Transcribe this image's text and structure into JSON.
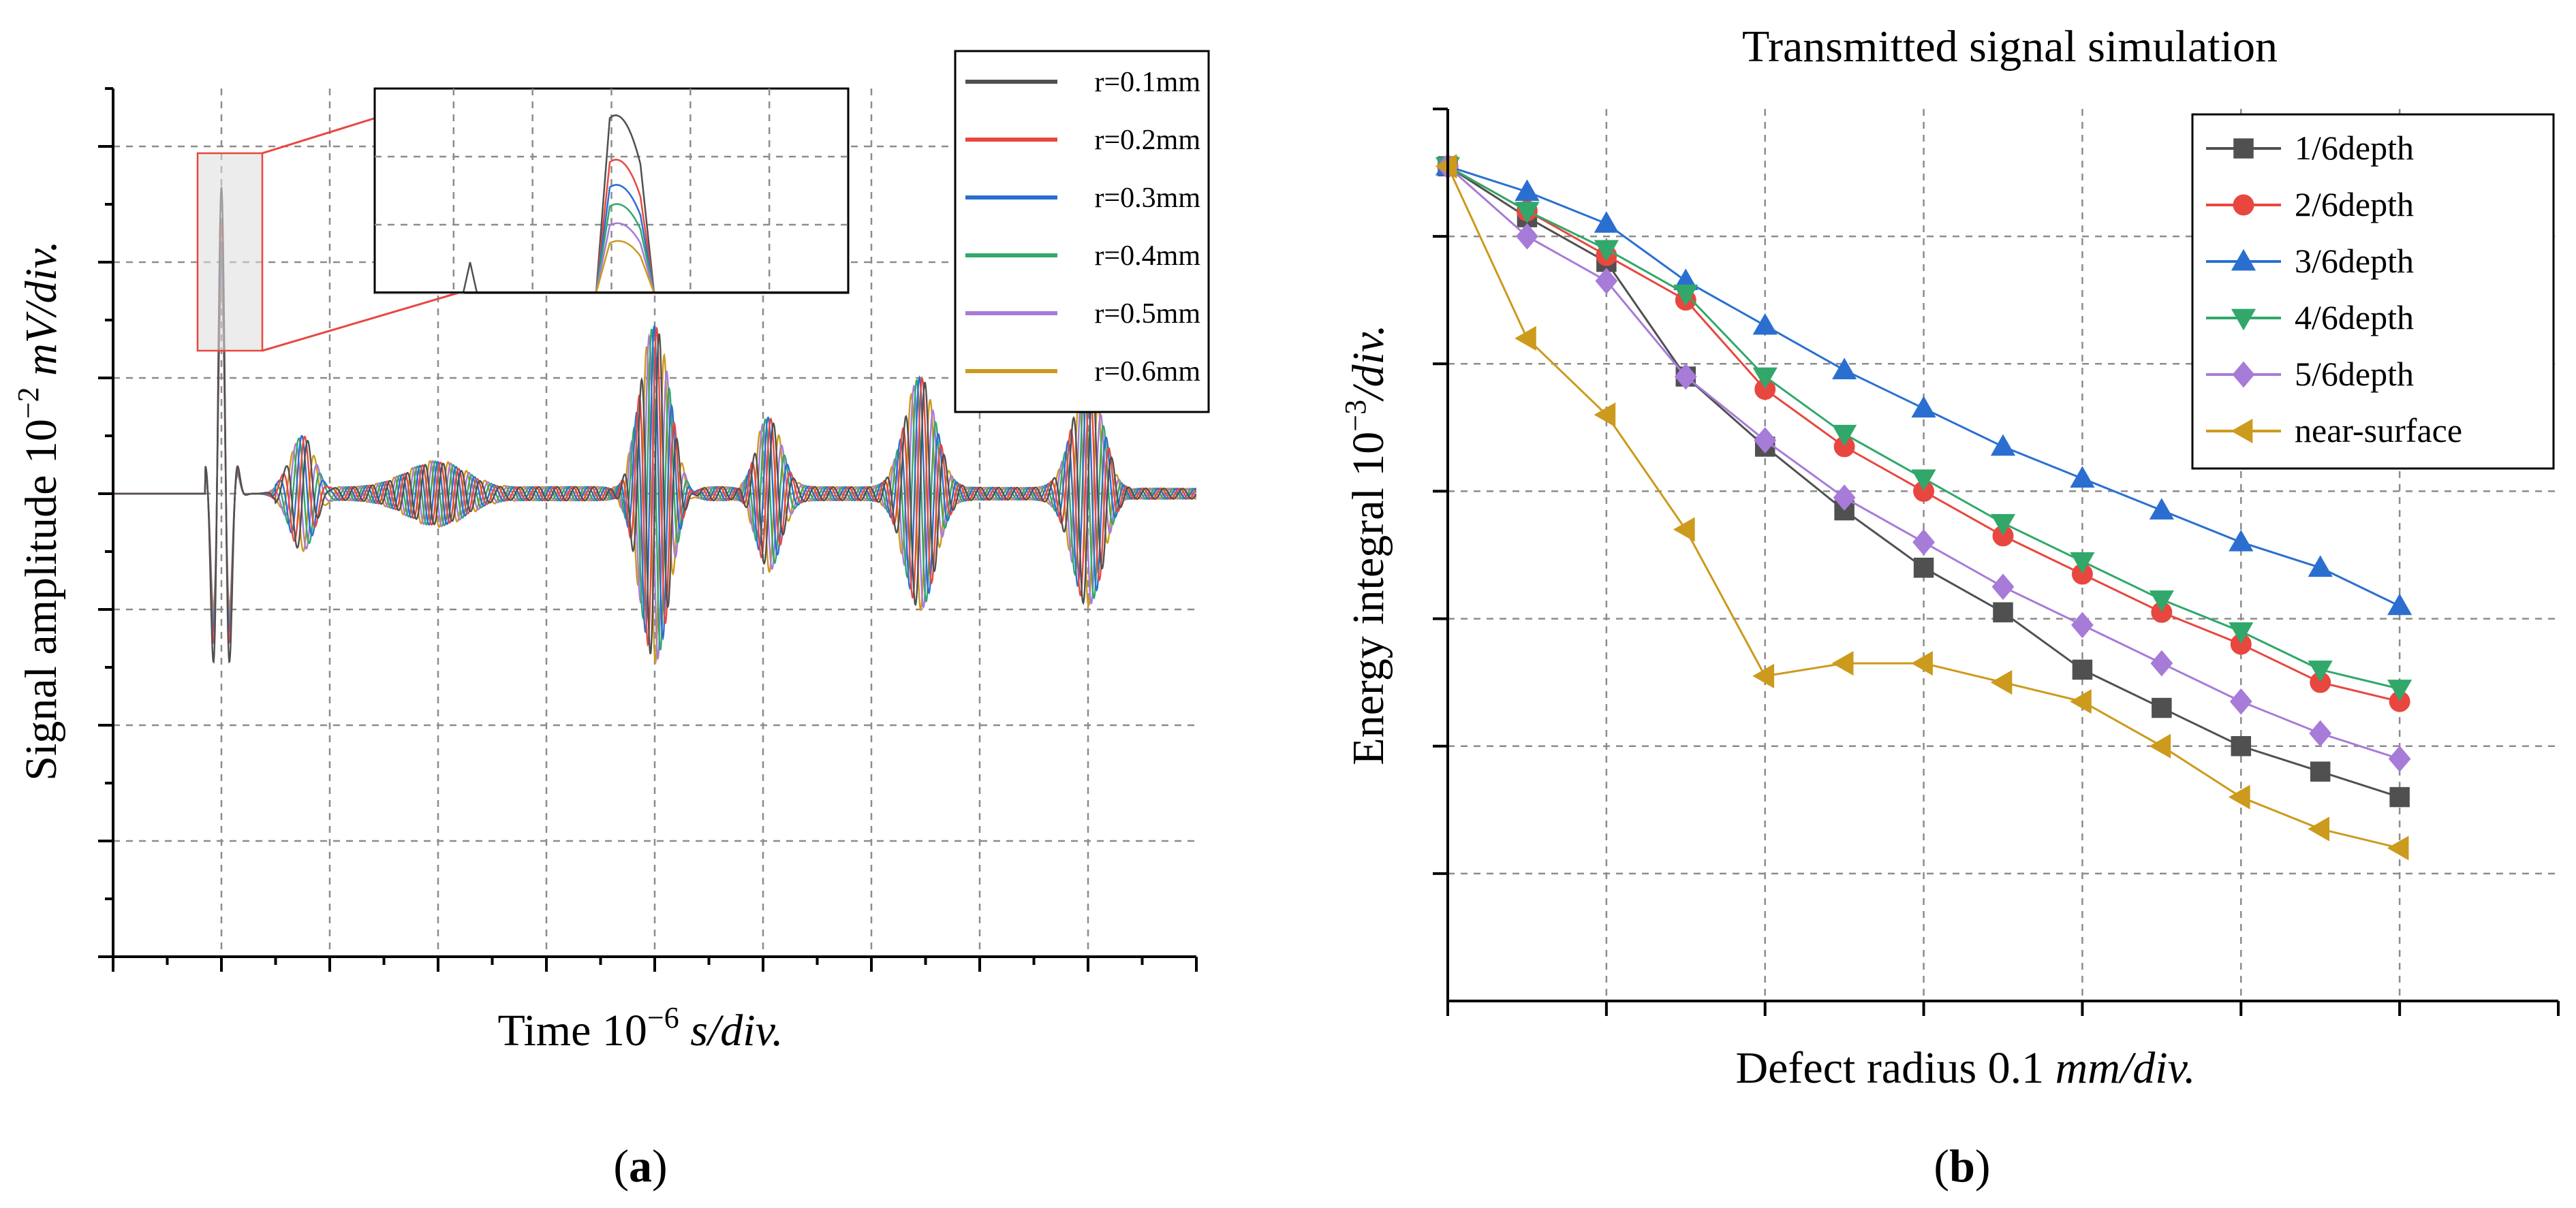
{
  "chart_data": [
    {
      "type": "line",
      "panel_label": "(a)",
      "panel_letter": "a",
      "title": "",
      "xlabel": "Time 10",
      "xlabel_exp": "−6",
      "xlabel_units": "s/div.",
      "ylabel": "Signal amplitude 10",
      "ylabel_exp": "−2",
      "ylabel_units": "mV/div.",
      "xlim": [
        -1,
        9
      ],
      "ylim": [
        -4,
        3.5
      ],
      "grid": true,
      "legend_position": "top-right",
      "series": [
        {
          "name": "r=0.1mm",
          "color": "#505050",
          "peak": 2.65
        },
        {
          "name": "r=0.2mm",
          "color": "#e8473f",
          "peak": 2.35
        },
        {
          "name": "r=0.3mm",
          "color": "#2a6fd0",
          "peak": 2.18
        },
        {
          "name": "r=0.4mm",
          "color": "#31a86a",
          "peak": 2.05
        },
        {
          "name": "r=0.5mm",
          "color": "#a77bd8",
          "peak": 1.92
        },
        {
          "name": "r=0.6mm",
          "color": "#cc9a1c",
          "peak": 1.8
        }
      ],
      "wave_packets": [
        {
          "t": 0.0,
          "amp": 3.2,
          "width": 0.15,
          "freq": 6.0
        },
        {
          "t": 0.75,
          "amp": 0.55,
          "width": 0.25,
          "freq": 5.0
        },
        {
          "t": 2.0,
          "amp": 0.25,
          "width": 0.6,
          "freq": 6.0
        },
        {
          "t": 4.0,
          "amp": 1.5,
          "width": 0.3,
          "freq": 6.0
        },
        {
          "t": 5.05,
          "amp": 0.65,
          "width": 0.25,
          "freq": 5.5
        },
        {
          "t": 6.45,
          "amp": 0.95,
          "width": 0.3,
          "freq": 5.5
        },
        {
          "t": 8.0,
          "amp": 0.95,
          "width": 0.3,
          "freq": 5.5
        }
      ],
      "inset": {
        "description": "zoom on first peak",
        "xlim": [
          -0.15,
          0.15
        ]
      }
    },
    {
      "type": "line",
      "panel_label": "(b)",
      "panel_letter": "b",
      "title": "Transmitted signal simulation",
      "xlabel": "Defect radius 0.1 ",
      "xlabel_units": "mm/div.",
      "ylabel": "Energy integral 10",
      "ylabel_exp": "−3",
      "ylabel_units": "/div.",
      "xlim": [
        0,
        7
      ],
      "ylim": [
        0,
        7
      ],
      "grid": true,
      "legend_position": "top-right",
      "x": [
        0,
        0.5,
        1,
        1.5,
        2,
        2.5,
        3,
        3.5,
        4,
        4.5,
        5,
        5.5,
        6
      ],
      "series": [
        {
          "name": "1/6depth",
          "color": "#505050",
          "marker": "square",
          "values": [
            6.55,
            6.15,
            5.8,
            4.9,
            4.35,
            3.85,
            3.4,
            3.05,
            2.6,
            2.3,
            2.0,
            1.8,
            1.6
          ]
        },
        {
          "name": "2/6depth",
          "color": "#e8473f",
          "marker": "circle",
          "values": [
            6.55,
            6.2,
            5.85,
            5.5,
            4.8,
            4.35,
            4.0,
            3.65,
            3.35,
            3.05,
            2.8,
            2.5,
            2.35
          ]
        },
        {
          "name": "3/6depth",
          "color": "#2a6fd0",
          "marker": "triangle-up",
          "values": [
            6.55,
            6.35,
            6.1,
            5.65,
            5.3,
            4.95,
            4.65,
            4.35,
            4.1,
            3.85,
            3.6,
            3.4,
            3.1
          ]
        },
        {
          "name": "4/6depth",
          "color": "#31a86a",
          "marker": "triangle-down",
          "values": [
            6.55,
            6.2,
            5.9,
            5.55,
            4.9,
            4.45,
            4.1,
            3.75,
            3.45,
            3.15,
            2.9,
            2.6,
            2.45
          ]
        },
        {
          "name": "5/6depth",
          "color": "#a77bd8",
          "marker": "diamond",
          "values": [
            6.55,
            6.0,
            5.65,
            4.9,
            4.4,
            3.95,
            3.6,
            3.25,
            2.95,
            2.65,
            2.35,
            2.1,
            1.9
          ]
        },
        {
          "name": "near-surface",
          "color": "#cc9a1c",
          "marker": "triangle-left",
          "values": [
            6.55,
            5.2,
            4.6,
            3.7,
            2.55,
            2.65,
            2.65,
            2.5,
            2.35,
            2.0,
            1.6,
            1.35,
            1.2
          ]
        }
      ]
    }
  ]
}
